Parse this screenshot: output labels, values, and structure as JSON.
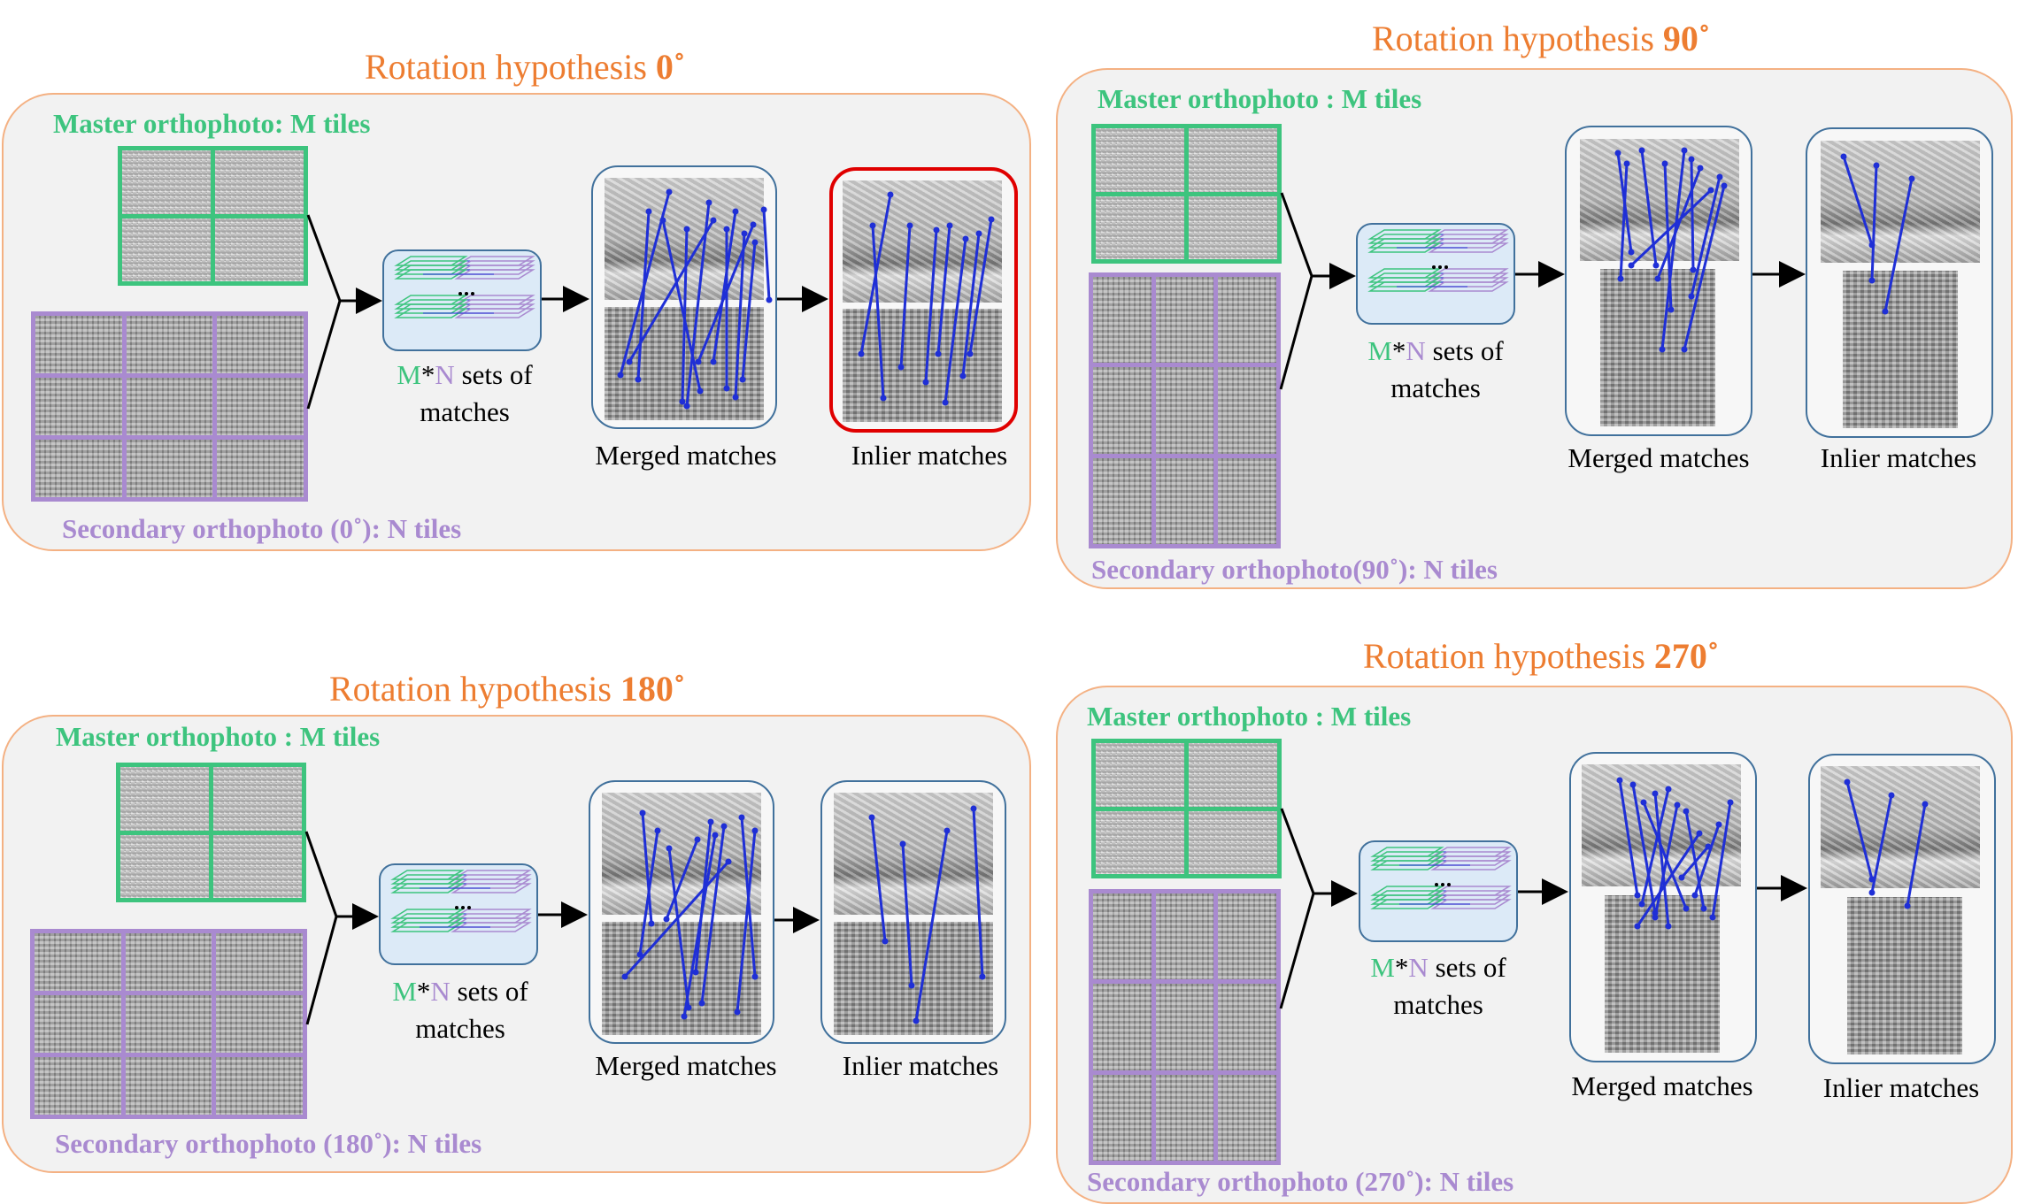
{
  "panels": [
    {
      "title_prefix": "Rotation hypothesis ",
      "title_angle": "0˚",
      "master_label": "Master orthophoto: M tiles",
      "secondary_label": "Secondary orthophoto (0˚): N tiles",
      "sets_m": "M",
      "sets_star": "*",
      "sets_n": "N",
      "sets_rest": " sets of",
      "sets_line2": "matches",
      "merged_caption": "Merged matches",
      "inlier_caption": "Inlier matches"
    },
    {
      "title_prefix": "Rotation hypothesis ",
      "title_angle": "90˚",
      "master_label": "Master orthophoto : M tiles",
      "secondary_label": "Secondary orthophoto(90˚): N tiles",
      "sets_m": "M",
      "sets_star": "*",
      "sets_n": "N",
      "sets_rest": " sets of",
      "sets_line2": "matches",
      "merged_caption": "Merged matches",
      "inlier_caption": "Inlier matches"
    },
    {
      "title_prefix": "Rotation hypothesis ",
      "title_angle": "180˚",
      "master_label": "Master orthophoto : M tiles",
      "secondary_label": "Secondary orthophoto (180˚): N tiles",
      "sets_m": "M",
      "sets_star": "*",
      "sets_n": "N",
      "sets_rest": " sets of",
      "sets_line2": "matches",
      "merged_caption": "Merged matches",
      "inlier_caption": "Inlier matches"
    },
    {
      "title_prefix": "Rotation hypothesis ",
      "title_angle": "270˚",
      "master_label": "Master orthophoto : M tiles",
      "secondary_label": "Secondary orthophoto (270˚): N tiles",
      "sets_m": "M",
      "sets_star": "*",
      "sets_n": "N",
      "sets_rest": " sets of",
      "sets_line2": "matches",
      "merged_caption": "Merged matches",
      "inlier_caption": "Inlier matches"
    }
  ],
  "colors": {
    "title": "#ED7D31",
    "master": "#3DC47E",
    "secondary": "#A98AD0",
    "match_lines": "#1F2FD6",
    "selected_border": "#E00000"
  },
  "selected_hypothesis": "0˚"
}
